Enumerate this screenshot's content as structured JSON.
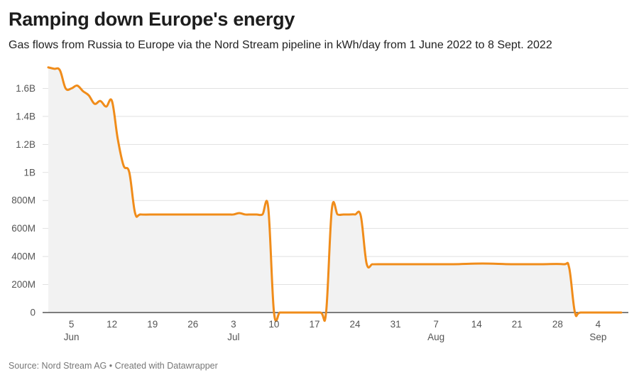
{
  "header": {
    "title": "Ramping down Europe's energy",
    "subtitle": "Gas flows from Russia to Europe via the Nord Stream pipeline in kWh/day from 1 June 2022 to 8 Sept. 2022"
  },
  "footer": {
    "source": "Source: Nord Stream AG • Created with Datawrapper"
  },
  "colors": {
    "line": "#f08c1a",
    "area": "#f2f2f2",
    "grid": "#e1e1e1",
    "baseline": "#333333"
  },
  "chart_data": {
    "type": "area",
    "title": "Ramping down Europe's energy",
    "subtitle": "Gas flows from Russia to Europe via the Nord Stream pipeline in kWh/day from 1 June 2022 to 8 Sept. 2022",
    "xlabel": "",
    "ylabel": "",
    "ylim": [
      0,
      1800000000
    ],
    "xlim": [
      "2022-06-01",
      "2022-09-08"
    ],
    "grid": true,
    "y_ticks": [
      {
        "value": 0,
        "label": "0"
      },
      {
        "value": 200000000,
        "label": "200M"
      },
      {
        "value": 400000000,
        "label": "400M"
      },
      {
        "value": 600000000,
        "label": "600M"
      },
      {
        "value": 800000000,
        "label": "800M"
      },
      {
        "value": 1000000000,
        "label": "1B"
      },
      {
        "value": 1200000000,
        "label": "1.2B"
      },
      {
        "value": 1400000000,
        "label": "1.4B"
      },
      {
        "value": 1600000000,
        "label": "1.6B"
      }
    ],
    "x_ticks": [
      {
        "date": "2022-06-05",
        "label": "5"
      },
      {
        "date": "2022-06-12",
        "label": "12"
      },
      {
        "date": "2022-06-19",
        "label": "19"
      },
      {
        "date": "2022-06-26",
        "label": "26"
      },
      {
        "date": "2022-07-03",
        "label": "3"
      },
      {
        "date": "2022-07-10",
        "label": "10"
      },
      {
        "date": "2022-07-17",
        "label": "17"
      },
      {
        "date": "2022-07-24",
        "label": "24"
      },
      {
        "date": "2022-07-31",
        "label": "31"
      },
      {
        "date": "2022-08-07",
        "label": "7"
      },
      {
        "date": "2022-08-14",
        "label": "14"
      },
      {
        "date": "2022-08-21",
        "label": "21"
      },
      {
        "date": "2022-08-28",
        "label": "28"
      },
      {
        "date": "2022-09-04",
        "label": "4"
      }
    ],
    "month_labels": [
      {
        "date": "2022-06-05",
        "label": "Jun"
      },
      {
        "date": "2022-07-03",
        "label": "Jul"
      },
      {
        "date": "2022-08-07",
        "label": "Aug"
      },
      {
        "date": "2022-09-04",
        "label": "Sep"
      }
    ],
    "series": [
      {
        "x": [
          "2022-06-01",
          "2022-06-02",
          "2022-06-03",
          "2022-06-04",
          "2022-06-05",
          "2022-06-06",
          "2022-06-07",
          "2022-06-08",
          "2022-06-09",
          "2022-06-10",
          "2022-06-11",
          "2022-06-12",
          "2022-06-13",
          "2022-06-14",
          "2022-06-15",
          "2022-06-16",
          "2022-06-17",
          "2022-06-20",
          "2022-06-25",
          "2022-06-30",
          "2022-07-02",
          "2022-07-03",
          "2022-07-04",
          "2022-07-05",
          "2022-07-06",
          "2022-07-07",
          "2022-07-08",
          "2022-07-09",
          "2022-07-10",
          "2022-07-11",
          "2022-07-12",
          "2022-07-15",
          "2022-07-18",
          "2022-07-19",
          "2022-07-20",
          "2022-07-21",
          "2022-07-22",
          "2022-07-23",
          "2022-07-24",
          "2022-07-25",
          "2022-07-26",
          "2022-07-27",
          "2022-07-28",
          "2022-08-05",
          "2022-08-10",
          "2022-08-15",
          "2022-08-20",
          "2022-08-25",
          "2022-08-29",
          "2022-08-30",
          "2022-08-31",
          "2022-09-01",
          "2022-09-05",
          "2022-09-08"
        ],
        "y": [
          1750000000,
          1740000000,
          1730000000,
          1600000000,
          1600000000,
          1620000000,
          1580000000,
          1550000000,
          1490000000,
          1510000000,
          1470000000,
          1510000000,
          1240000000,
          1050000000,
          1000000000,
          710000000,
          700000000,
          700000000,
          700000000,
          700000000,
          700000000,
          700000000,
          710000000,
          700000000,
          700000000,
          700000000,
          700000000,
          750000000,
          0,
          0,
          0,
          0,
          0,
          0,
          740000000,
          700000000,
          700000000,
          700000000,
          700000000,
          690000000,
          350000000,
          345000000,
          345000000,
          345000000,
          345000000,
          350000000,
          345000000,
          345000000,
          345000000,
          320000000,
          0,
          0,
          0,
          0
        ]
      }
    ]
  }
}
